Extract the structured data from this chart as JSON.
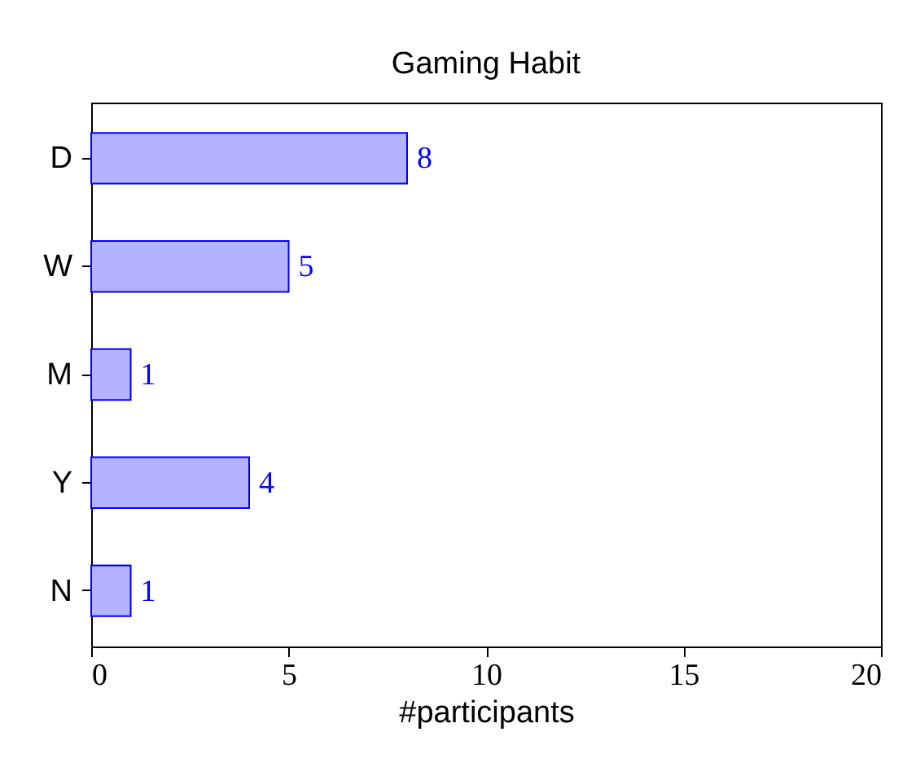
{
  "chart_data": {
    "type": "bar",
    "orientation": "horizontal",
    "title": "Gaming Habit",
    "xlabel": "#participants",
    "categories": [
      "D",
      "W",
      "M",
      "Y",
      "N"
    ],
    "values": [
      8,
      5,
      1,
      4,
      1
    ],
    "color": "#b3b3ff",
    "xlim": [
      0,
      20
    ],
    "xticks": [
      0,
      5,
      10,
      15,
      20
    ],
    "data_labels": true,
    "grid": false
  }
}
